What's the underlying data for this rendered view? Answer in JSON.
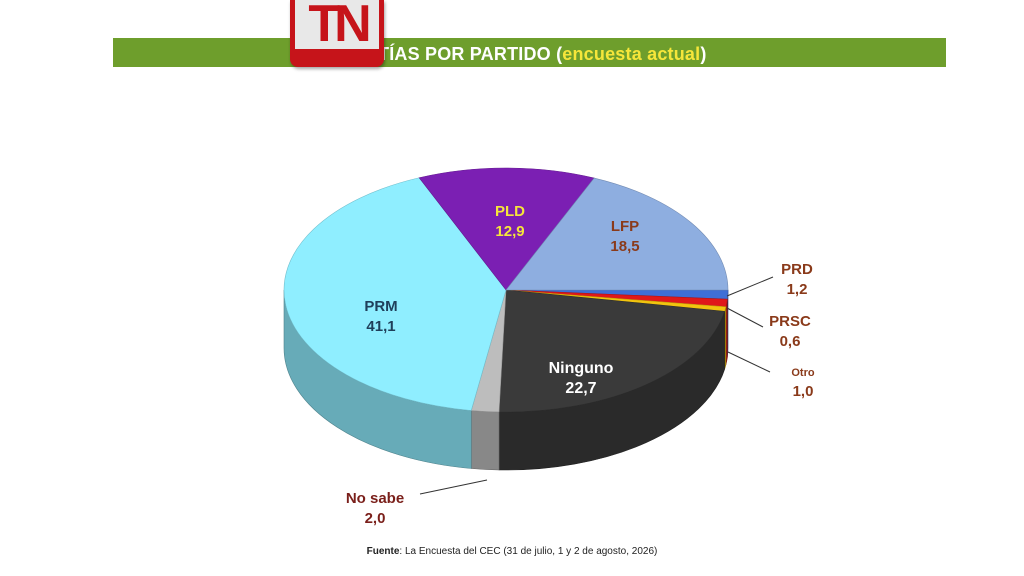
{
  "header": {
    "logo": "TN",
    "title_main": "TÍAS POR PARTIDO (",
    "title_highlight": "encuesta actual",
    "title_close": ")"
  },
  "colors": {
    "header_bar": "#6e9e2c",
    "logo_red": "#c6141a",
    "title_highlight": "#f6e63a",
    "label_dark": "#7a3b1e"
  },
  "chart_data": {
    "type": "pie",
    "style": "3d",
    "unit": "%",
    "start_angle_deg": 0,
    "slices": [
      {
        "name": "PRD",
        "value": 1.2,
        "color": "#3f6fd6"
      },
      {
        "name": "Otro",
        "value": 1.0,
        "color": "#e0181a"
      },
      {
        "name": "PRSC",
        "value": 0.6,
        "color": "#f1c40f"
      },
      {
        "name": "Ninguno",
        "value": 22.7,
        "color": "#3a3a3a"
      },
      {
        "name": "No sabe",
        "value": 2.0,
        "color": "#bdbdbd"
      },
      {
        "name": "PRM",
        "value": 41.1,
        "color": "#8feeff"
      },
      {
        "name": "PLD",
        "value": 12.9,
        "color": "#7b1fb3"
      },
      {
        "name": "LFP",
        "value": 18.5,
        "color": "#8eaee0"
      }
    ],
    "labels": [
      {
        "name": "PRM",
        "value": "41,1"
      },
      {
        "name": "PLD",
        "value": "12,9"
      },
      {
        "name": "LFP",
        "value": "18,5"
      },
      {
        "name": "Ninguno",
        "value": "22,7"
      },
      {
        "name": "PRD",
        "value": "1,2"
      },
      {
        "name": "PRSC",
        "value": "0,6"
      },
      {
        "name": "Otro",
        "value": "1,0"
      },
      {
        "name": "No sabe",
        "value": "2,0"
      }
    ]
  },
  "footer": {
    "source_label": "Fuente",
    "source_text": ": La Encuesta del CEC (31 de julio, 1 y 2 de agosto, 2026)"
  }
}
